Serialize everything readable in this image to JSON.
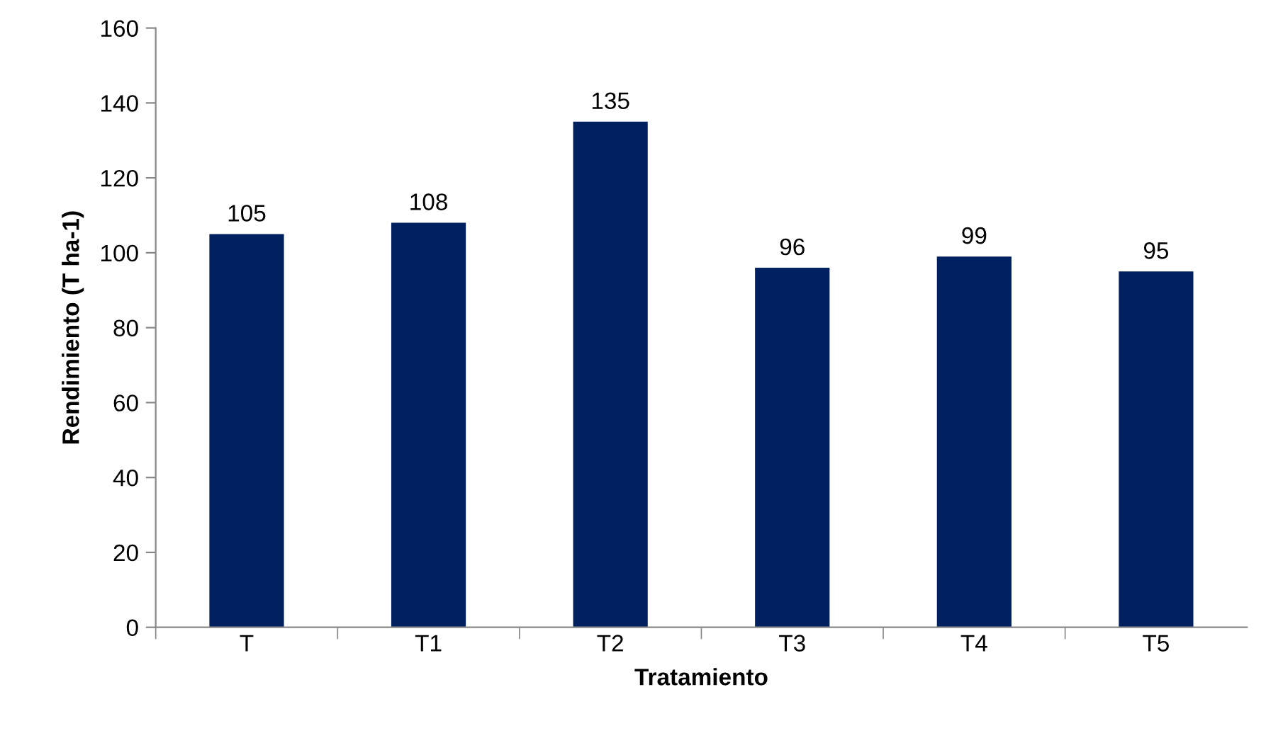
{
  "chart_data": {
    "type": "bar",
    "xlabel": "Tratamiento",
    "ylabel": "Rendimiento (T ha-1)",
    "categories": [
      "T",
      "T1",
      "T2",
      "T3",
      "T4",
      "T5"
    ],
    "values": [
      105,
      108,
      135,
      96,
      99,
      95
    ],
    "color": "#002060",
    "ylim": [
      0,
      160
    ],
    "yticks": [
      0,
      20,
      40,
      60,
      80,
      100,
      120,
      140,
      160
    ],
    "grid": false,
    "data_labels": true
  }
}
